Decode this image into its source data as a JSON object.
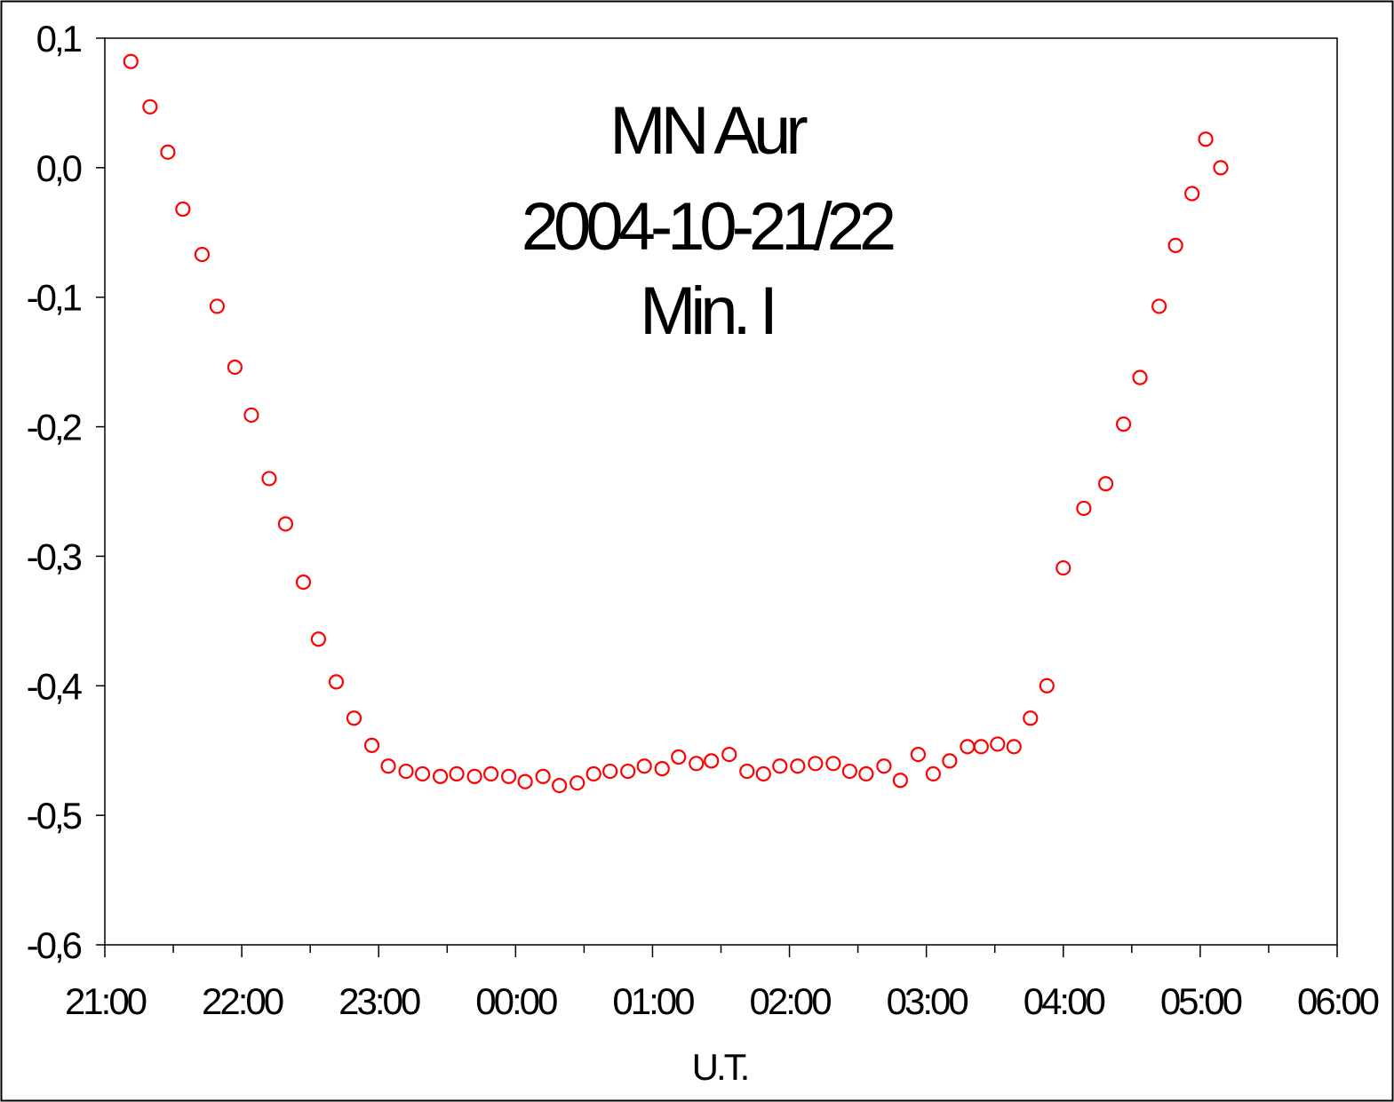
{
  "chart_data": {
    "type": "scatter",
    "title_lines": [
      "MN Aur",
      "2004-10-21/22",
      "Min. I"
    ],
    "xlabel": "U.T.",
    "ylabel": "",
    "x_unit": "hours after 21:00 U.T.",
    "xlim": [
      0,
      9
    ],
    "ylim": [
      -0.6,
      0.1
    ],
    "x_tick_labels": [
      "21:00",
      "22:00",
      "23:00",
      "00:00",
      "01:00",
      "02:00",
      "03:00",
      "04:00",
      "05:00",
      "06:00"
    ],
    "y_tick_values": [
      0.1,
      0.0,
      -0.1,
      -0.2,
      -0.3,
      -0.4,
      -0.5,
      -0.6
    ],
    "y_tick_labels": [
      "0,1",
      "0,0",
      "-0,1",
      "-0,2",
      "-0,3",
      "-0,4",
      "-0,5",
      "-0,6"
    ],
    "grid": false,
    "legend": "none",
    "marker_color": "#ff0000",
    "marker": "open-circle",
    "series": [
      {
        "x": [
          0.19,
          0.33,
          0.46,
          0.57,
          0.71,
          0.82,
          0.95,
          1.07,
          1.2,
          1.32,
          1.45,
          1.56,
          1.69,
          1.82,
          1.95,
          2.07,
          2.2,
          2.32,
          2.45,
          2.57,
          2.7,
          2.82,
          2.95,
          3.07,
          3.2,
          3.32,
          3.45,
          3.57,
          3.69,
          3.82,
          3.94,
          4.07,
          4.19,
          4.32,
          4.43,
          4.56,
          4.69,
          4.81,
          4.93,
          5.06,
          5.19,
          5.32,
          5.44,
          5.56,
          5.69,
          5.81,
          5.94,
          6.05,
          6.17,
          6.3,
          6.4,
          6.52,
          6.64,
          6.76,
          6.88,
          7.0,
          7.15,
          7.31,
          7.44,
          7.56,
          7.7,
          7.82,
          7.94,
          8.04,
          8.15
        ],
        "y": [
          0.082,
          0.047,
          0.012,
          -0.032,
          -0.067,
          -0.107,
          -0.154,
          -0.191,
          -0.24,
          -0.275,
          -0.32,
          -0.364,
          -0.397,
          -0.425,
          -0.446,
          -0.462,
          -0.466,
          -0.468,
          -0.47,
          -0.468,
          -0.47,
          -0.468,
          -0.47,
          -0.474,
          -0.47,
          -0.477,
          -0.475,
          -0.468,
          -0.466,
          -0.466,
          -0.462,
          -0.464,
          -0.455,
          -0.46,
          -0.458,
          -0.453,
          -0.466,
          -0.468,
          -0.462,
          -0.462,
          -0.46,
          -0.46,
          -0.466,
          -0.468,
          -0.462,
          -0.473,
          -0.453,
          -0.468,
          -0.458,
          -0.447,
          -0.447,
          -0.445,
          -0.447,
          -0.425,
          -0.4,
          -0.309,
          -0.263,
          -0.244,
          -0.198,
          -0.162,
          -0.107,
          -0.06,
          -0.02,
          0.022,
          0
        ]
      }
    ]
  }
}
